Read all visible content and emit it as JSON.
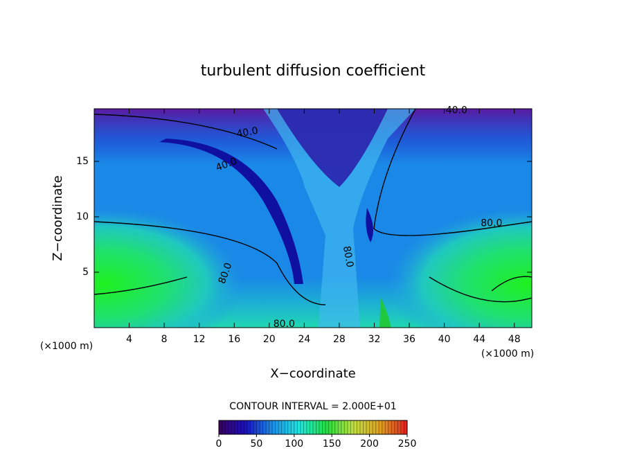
{
  "chart_data": {
    "type": "contour",
    "title": "turbulent diffusion coefficient",
    "xlabel": "X−coordinate",
    "ylabel": "Z−coordinate",
    "x_unit_label": "(×1000 m)",
    "x_unit_label_right": "(×1000 m)",
    "xlim": [
      0,
      50
    ],
    "xticks": [
      4,
      8,
      12,
      16,
      20,
      24,
      28,
      32,
      36,
      40,
      44,
      48
    ],
    "ylim": [
      0,
      19.75
    ],
    "yticks": [
      5,
      10,
      15
    ],
    "contour_interval_label": "CONTOUR INTERVAL = 2.000E+01",
    "colorbar": {
      "lim": [
        0,
        250
      ],
      "ticks": [
        0,
        50,
        100,
        150,
        200,
        250
      ],
      "colors": [
        "#3a0060",
        "#1a10c0",
        "#1a8fe8",
        "#20e8e0",
        "#20e040",
        "#c0e040",
        "#e0a020",
        "#e02020"
      ]
    },
    "contour_labels": [
      {
        "value": 40,
        "label": "40.0",
        "x": 41.4,
        "y": 19.6,
        "angle": 0
      },
      {
        "value": 40,
        "label": "40.0",
        "x": 17.5,
        "y": 17.6,
        "angle": 10
      },
      {
        "value": 40,
        "label": "40.0",
        "x": 15.1,
        "y": 14.7,
        "angle": 20
      },
      {
        "value": 80,
        "label": "80.0",
        "x": 45.4,
        "y": 9.4,
        "angle": 0
      },
      {
        "value": 80,
        "label": "80.0",
        "x": 15.0,
        "y": 4.9,
        "angle": 70
      },
      {
        "value": 80,
        "label": "80.0",
        "x": 29.0,
        "y": 6.4,
        "angle": -80
      },
      {
        "value": 80,
        "label": "80.0",
        "x": 21.7,
        "y": 0.3,
        "angle": 0
      }
    ]
  }
}
